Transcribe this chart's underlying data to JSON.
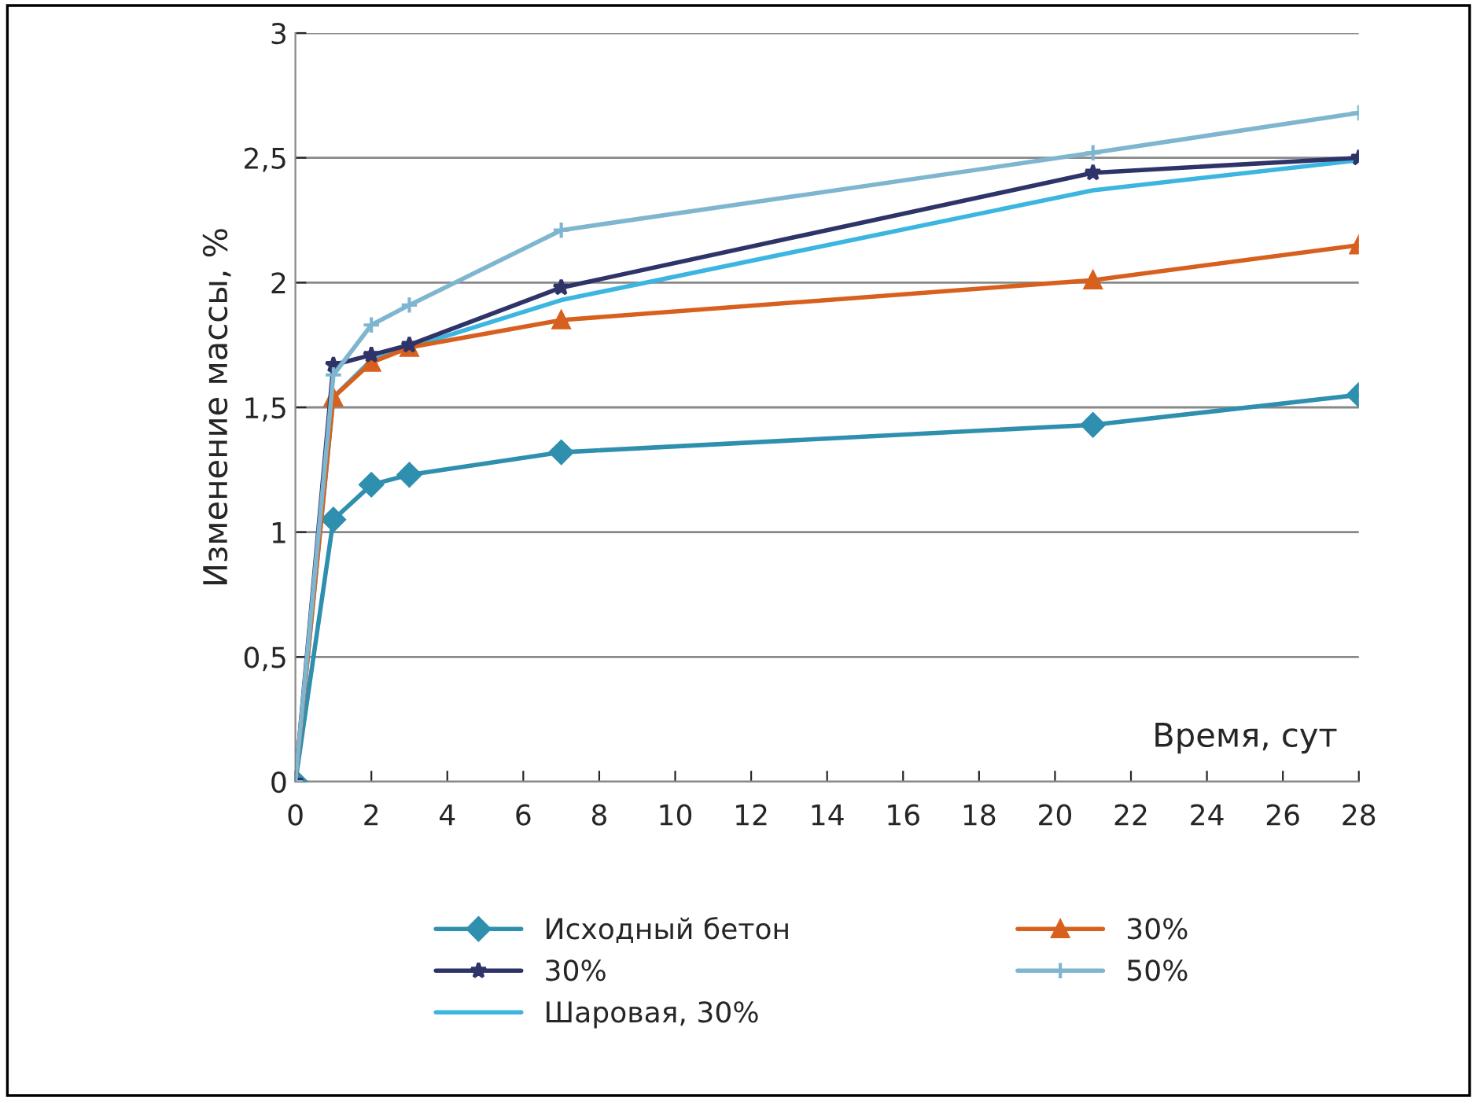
{
  "chart_data": {
    "type": "line",
    "xlabel": "Время, сут",
    "ylabel": "Изменение массы, %",
    "x": [
      0,
      1,
      2,
      3,
      7,
      21,
      28
    ],
    "series": [
      {
        "name": "Исходный бетон",
        "color": "#2e8fae",
        "marker": "diamond",
        "values": [
          0,
          1.05,
          1.19,
          1.23,
          1.32,
          1.43,
          1.55
        ]
      },
      {
        "name": "30%",
        "color": "#d8601e",
        "marker": "triangle",
        "values": [
          0,
          1.54,
          1.68,
          1.74,
          1.85,
          2.01,
          2.15
        ]
      },
      {
        "name": "30%",
        "color": "#2f3468",
        "marker": "star",
        "values": [
          0,
          1.67,
          1.71,
          1.75,
          1.98,
          2.44,
          2.5
        ]
      },
      {
        "name": "50%",
        "color": "#7fb6cf",
        "marker": "cross",
        "values": [
          0,
          1.63,
          1.83,
          1.91,
          2.21,
          2.52,
          2.68
        ]
      },
      {
        "name": "Шаровая, 30%",
        "color": "#3cb6e0",
        "marker": "none",
        "values": [
          0,
          1.54,
          1.69,
          1.74,
          1.93,
          2.37,
          2.49
        ]
      }
    ],
    "xlim": [
      0,
      28
    ],
    "xticks": [
      0,
      2,
      4,
      6,
      8,
      10,
      12,
      14,
      16,
      18,
      20,
      22,
      24,
      26,
      28
    ],
    "ylim": [
      0,
      3
    ],
    "yticks": [
      0,
      {
        "value": 0.5,
        "label": "0,5"
      },
      1,
      {
        "value": 1.5,
        "label": "1,5"
      },
      2,
      {
        "value": 2.5,
        "label": "2,5"
      },
      3
    ],
    "grid": "y",
    "legend": "bottom",
    "line_style": "solid"
  }
}
